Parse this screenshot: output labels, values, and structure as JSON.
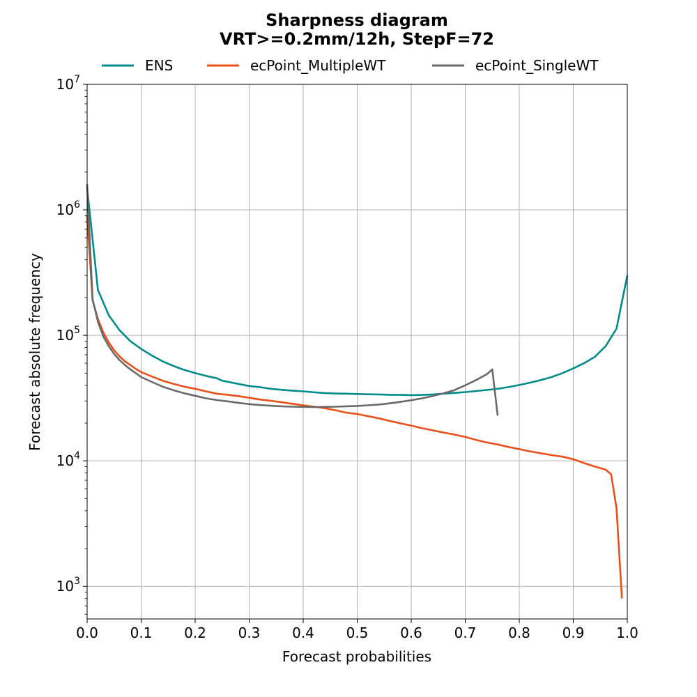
{
  "chart_data": {
    "type": "line",
    "title_line1": "Sharpness diagram",
    "title_line2": "VRT>=0.2mm/12h, StepF=72",
    "xlabel": "Forecast probabilities",
    "ylabel": "Forecast absolute frequency",
    "xlim": [
      0.0,
      1.0
    ],
    "ylim": [
      550,
      10000000
    ],
    "y_scale": "log",
    "grid": true,
    "legend_position": "top-center",
    "x_ticks": [
      "0.0",
      "0.1",
      "0.2",
      "0.3",
      "0.4",
      "0.5",
      "0.6",
      "0.7",
      "0.8",
      "0.9",
      "1.0"
    ],
    "y_ticks": [
      {
        "value": 1000,
        "base": "10",
        "exp": "3"
      },
      {
        "value": 10000,
        "base": "10",
        "exp": "4"
      },
      {
        "value": 100000,
        "base": "10",
        "exp": "5"
      },
      {
        "value": 1000000,
        "base": "10",
        "exp": "6"
      },
      {
        "value": 10000000,
        "base": "10",
        "exp": "7"
      }
    ],
    "series": [
      {
        "name": "ENS",
        "color": "#008b8b",
        "points": [
          [
            0.0,
            1500000
          ],
          [
            0.02,
            230000
          ],
          [
            0.04,
            145000
          ],
          [
            0.06,
            110000
          ],
          [
            0.08,
            90000
          ],
          [
            0.1,
            78000
          ],
          [
            0.12,
            69000
          ],
          [
            0.14,
            62000
          ],
          [
            0.16,
            57000
          ],
          [
            0.18,
            53000
          ],
          [
            0.2,
            50000
          ],
          [
            0.22,
            47500
          ],
          [
            0.24,
            45500
          ],
          [
            0.25,
            43500
          ],
          [
            0.28,
            41000
          ],
          [
            0.3,
            39500
          ],
          [
            0.32,
            38700
          ],
          [
            0.34,
            37500
          ],
          [
            0.36,
            36800
          ],
          [
            0.38,
            36300
          ],
          [
            0.4,
            35800
          ],
          [
            0.42,
            35200
          ],
          [
            0.44,
            34700
          ],
          [
            0.46,
            34400
          ],
          [
            0.48,
            34300
          ],
          [
            0.5,
            34100
          ],
          [
            0.52,
            33900
          ],
          [
            0.54,
            33800
          ],
          [
            0.56,
            33600
          ],
          [
            0.58,
            33500
          ],
          [
            0.6,
            33400
          ],
          [
            0.62,
            33500
          ],
          [
            0.64,
            33800
          ],
          [
            0.66,
            34300
          ],
          [
            0.68,
            34800
          ],
          [
            0.7,
            35300
          ],
          [
            0.72,
            36000
          ],
          [
            0.74,
            36700
          ],
          [
            0.76,
            37500
          ],
          [
            0.78,
            38700
          ],
          [
            0.8,
            40200
          ],
          [
            0.82,
            42000
          ],
          [
            0.84,
            44000
          ],
          [
            0.86,
            46500
          ],
          [
            0.88,
            50000
          ],
          [
            0.9,
            54500
          ],
          [
            0.92,
            60000
          ],
          [
            0.94,
            67500
          ],
          [
            0.96,
            82000
          ],
          [
            0.98,
            113000
          ],
          [
            1.0,
            300000
          ]
        ]
      },
      {
        "name": "ecPoint_MultipleWT",
        "color": "#e8501a",
        "points": [
          [
            0.0,
            900000
          ],
          [
            0.01,
            190000
          ],
          [
            0.02,
            135000
          ],
          [
            0.03,
            105000
          ],
          [
            0.04,
            88000
          ],
          [
            0.05,
            76000
          ],
          [
            0.06,
            68000
          ],
          [
            0.07,
            62000
          ],
          [
            0.08,
            58000
          ],
          [
            0.09,
            54000
          ],
          [
            0.1,
            51000
          ],
          [
            0.12,
            47000
          ],
          [
            0.14,
            43500
          ],
          [
            0.16,
            41000
          ],
          [
            0.18,
            39000
          ],
          [
            0.2,
            37500
          ],
          [
            0.22,
            35800
          ],
          [
            0.24,
            34300
          ],
          [
            0.26,
            33600
          ],
          [
            0.28,
            32800
          ],
          [
            0.3,
            31800
          ],
          [
            0.32,
            30800
          ],
          [
            0.34,
            30100
          ],
          [
            0.36,
            29300
          ],
          [
            0.38,
            28500
          ],
          [
            0.4,
            27700
          ],
          [
            0.42,
            27000
          ],
          [
            0.44,
            26300
          ],
          [
            0.46,
            25300
          ],
          [
            0.48,
            24200
          ],
          [
            0.5,
            23600
          ],
          [
            0.52,
            22700
          ],
          [
            0.54,
            21800
          ],
          [
            0.56,
            20800
          ],
          [
            0.58,
            19900
          ],
          [
            0.6,
            19100
          ],
          [
            0.62,
            18200
          ],
          [
            0.64,
            17500
          ],
          [
            0.66,
            16800
          ],
          [
            0.68,
            16200
          ],
          [
            0.7,
            15500
          ],
          [
            0.72,
            14700
          ],
          [
            0.74,
            14000
          ],
          [
            0.76,
            13500
          ],
          [
            0.78,
            12900
          ],
          [
            0.8,
            12400
          ],
          [
            0.82,
            11900
          ],
          [
            0.84,
            11500
          ],
          [
            0.86,
            11100
          ],
          [
            0.88,
            10800
          ],
          [
            0.9,
            10300
          ],
          [
            0.92,
            9600
          ],
          [
            0.94,
            9000
          ],
          [
            0.96,
            8500
          ],
          [
            0.97,
            7800
          ],
          [
            0.98,
            4200
          ],
          [
            0.99,
            800
          ]
        ]
      },
      {
        "name": "ecPoint_SingleWT",
        "color": "#696969",
        "points": [
          [
            0.0,
            1600000
          ],
          [
            0.01,
            195000
          ],
          [
            0.02,
            128000
          ],
          [
            0.03,
            98000
          ],
          [
            0.04,
            82000
          ],
          [
            0.05,
            71000
          ],
          [
            0.06,
            63500
          ],
          [
            0.07,
            58000
          ],
          [
            0.08,
            53500
          ],
          [
            0.09,
            50000
          ],
          [
            0.1,
            46500
          ],
          [
            0.12,
            42500
          ],
          [
            0.14,
            39000
          ],
          [
            0.16,
            36500
          ],
          [
            0.18,
            34500
          ],
          [
            0.2,
            33000
          ],
          [
            0.22,
            31500
          ],
          [
            0.24,
            30500
          ],
          [
            0.26,
            29800
          ],
          [
            0.28,
            29000
          ],
          [
            0.3,
            28300
          ],
          [
            0.32,
            27800
          ],
          [
            0.34,
            27500
          ],
          [
            0.36,
            27200
          ],
          [
            0.38,
            27000
          ],
          [
            0.4,
            26900
          ],
          [
            0.42,
            26800
          ],
          [
            0.44,
            26900
          ],
          [
            0.46,
            27000
          ],
          [
            0.48,
            27200
          ],
          [
            0.5,
            27400
          ],
          [
            0.52,
            27700
          ],
          [
            0.54,
            28100
          ],
          [
            0.56,
            28700
          ],
          [
            0.58,
            29500
          ],
          [
            0.6,
            30400
          ],
          [
            0.62,
            31500
          ],
          [
            0.64,
            32900
          ],
          [
            0.66,
            34500
          ],
          [
            0.68,
            36600
          ],
          [
            0.7,
            40000
          ],
          [
            0.72,
            44000
          ],
          [
            0.74,
            49000
          ],
          [
            0.75,
            53500
          ],
          [
            0.76,
            23000
          ]
        ]
      }
    ]
  }
}
